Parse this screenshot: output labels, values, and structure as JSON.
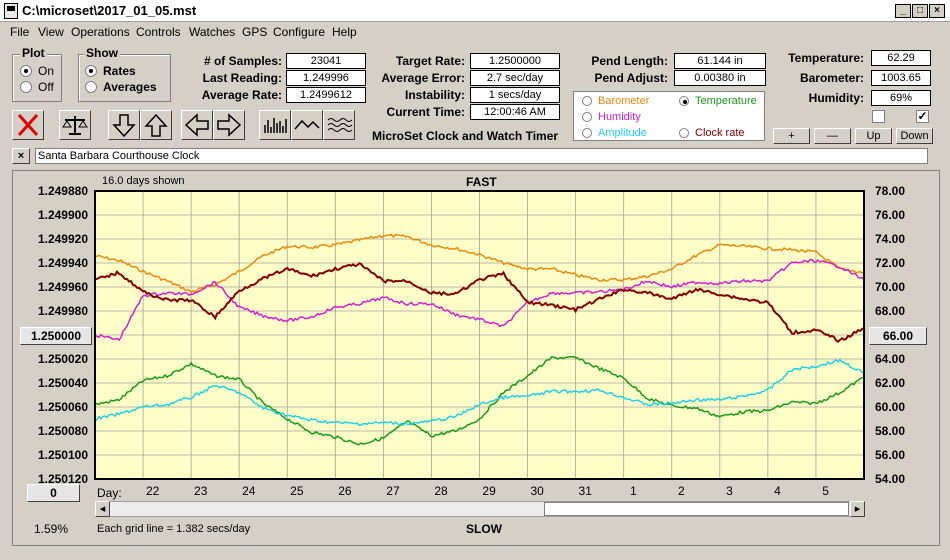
{
  "window": {
    "title": "C:\\microset\\2017_01_05.mst"
  },
  "menu": [
    "File",
    "View",
    "Operations",
    "Controls",
    "Watches",
    "GPS",
    "Configure",
    "Help"
  ],
  "plot": {
    "title": "Plot",
    "on": "On",
    "off": "Off"
  },
  "show": {
    "title": "Show",
    "rates": "Rates",
    "averages": "Averages"
  },
  "stats": {
    "samples_label": "# of Samples:",
    "samples": "23041",
    "last_label": "Last Reading:",
    "last": "1.249996",
    "avg_label": "Average Rate:",
    "avg": "1.2499612"
  },
  "targets": {
    "target_label": "Target Rate:",
    "target": "1.2500000",
    "error_label": "Average Error:",
    "error": "2.7 sec/day",
    "instability_label": "Instability:",
    "instability": "1 secs/day",
    "time_label": "Current Time:",
    "time": "12:00:46 AM"
  },
  "pendulum": {
    "length_label": "Pend Length:",
    "length": "61.144 in",
    "adjust_label": "Pend Adjust:",
    "adjust": "0.00380 in"
  },
  "environment": {
    "temp_label": "Temperature:",
    "temp": "62.29",
    "baro_label": "Barometer:",
    "baro": "1003.65",
    "hum_label": "Humidity:",
    "hum": "69%"
  },
  "legend": {
    "barometer": "Barometer",
    "temperature": "Temperature",
    "humidity": "Humidity",
    "amplitude": "Amplitude",
    "clock_rate": "Clock rate",
    "colors": {
      "barometer": "#e88a10",
      "temperature": "#1a9a1a",
      "humidity": "#d020d0",
      "amplitude": "#20d0e8",
      "clock_rate": "#800000"
    }
  },
  "app_caption": "MicroSet Clock and Watch Timer",
  "adjust_buttons": [
    "+",
    "—",
    "Up",
    "Down"
  ],
  "clock_name": "Santa Barbara Courthouse Clock",
  "chart_header": {
    "days_shown": "16.0 days shown",
    "top": "FAST",
    "bottom": "SLOW",
    "grid_note": "Each grid line = 1.382 secs/day",
    "pct": "1.59%",
    "day_label": "Day:"
  },
  "left_button": "1.250000",
  "right_button": "66.00",
  "zero_button": "0",
  "chart_data": {
    "type": "line",
    "x_ticks": [
      "22",
      "23",
      "24",
      "25",
      "26",
      "27",
      "28",
      "29",
      "30",
      "31",
      "1",
      "2",
      "3",
      "4",
      "5"
    ],
    "y_left_ticks": [
      "1.249880",
      "1.249900",
      "1.249920",
      "1.249940",
      "1.249960",
      "1.249980",
      "1.250000",
      "1.250020",
      "1.250040",
      "1.250060",
      "1.250080",
      "1.250100",
      "1.250120"
    ],
    "y_right_ticks": [
      "78.00",
      "76.00",
      "74.00",
      "72.00",
      "70.00",
      "68.00",
      "66.00",
      "64.00",
      "62.00",
      "60.00",
      "58.00",
      "56.00",
      "54.00"
    ],
    "x_range": [
      0,
      16
    ],
    "y_left_range": [
      1.24988,
      1.25012
    ],
    "y_right_range": [
      54,
      78
    ],
    "grid": true,
    "series": [
      {
        "name": "Barometer",
        "color": "#e88a10",
        "axis": "right",
        "x": [
          0,
          0.5,
          1.0,
          1.5,
          2.0,
          2.5,
          3.0,
          3.5,
          4.0,
          4.5,
          5.0,
          5.5,
          6.0,
          6.5,
          7.0,
          7.5,
          8.0,
          8.5,
          9.0,
          9.5,
          10.0,
          10.5,
          11.0,
          11.5,
          12.0,
          12.5,
          13.0,
          13.5,
          14.0,
          14.5,
          15.0,
          15.5,
          16.0
        ],
        "y": [
          72.6,
          72.2,
          71.3,
          70.5,
          69.6,
          70.2,
          71.3,
          72.6,
          73.4,
          73.3,
          73.5,
          73.9,
          74.3,
          74.2,
          73.5,
          73.2,
          72.7,
          72.0,
          71.5,
          71.5,
          71.0,
          70.6,
          70.6,
          70.9,
          71.5,
          72.6,
          73.5,
          73.4,
          73.2,
          73.1,
          72.9,
          71.5,
          71.2
        ]
      },
      {
        "name": "Temperature",
        "color": "#1a9a1a",
        "axis": "right",
        "x": [
          0,
          0.5,
          1.0,
          1.5,
          2.0,
          2.5,
          3.0,
          3.5,
          4.0,
          4.5,
          5.0,
          5.5,
          6.0,
          6.5,
          7.0,
          7.5,
          8.0,
          8.5,
          9.0,
          9.5,
          10.0,
          10.5,
          11.0,
          11.5,
          12.0,
          12.5,
          13.0,
          13.5,
          14.0,
          14.5,
          15.0,
          15.5,
          16.0
        ],
        "y": [
          60.2,
          60.6,
          62.2,
          62.6,
          63.6,
          62.6,
          62.3,
          60.3,
          59.0,
          57.9,
          57.5,
          56.9,
          57.4,
          58.8,
          57.6,
          58.0,
          59.0,
          61.2,
          62.6,
          64.1,
          64.1,
          63.2,
          62.4,
          60.7,
          60.1,
          59.9,
          59.2,
          59.6,
          59.7,
          60.4,
          60.3,
          61.2,
          62.5
        ]
      },
      {
        "name": "Humidity",
        "color": "#d020d0",
        "axis": "right",
        "x": [
          0,
          0.5,
          1.0,
          1.5,
          2.0,
          2.5,
          3.0,
          3.5,
          4.0,
          4.5,
          5.0,
          5.5,
          6.0,
          6.5,
          7.0,
          7.5,
          8.0,
          8.5,
          9.0,
          9.5,
          10.0,
          10.5,
          11.0,
          11.5,
          12.0,
          12.5,
          13.0,
          13.5,
          14.0,
          14.5,
          15.0,
          15.5,
          16.0
        ],
        "y": [
          66.0,
          65.6,
          69.3,
          69.5,
          69.4,
          70.4,
          68.3,
          67.6,
          67.2,
          67.5,
          68.3,
          68.6,
          69.1,
          68.6,
          68.6,
          67.7,
          67.3,
          66.7,
          68.7,
          69.5,
          69.5,
          69.6,
          69.8,
          70.5,
          70.0,
          70.4,
          70.3,
          70.5,
          70.5,
          72.0,
          72.2,
          71.7,
          70.6
        ]
      },
      {
        "name": "Amplitude",
        "color": "#20d0e8",
        "axis": "right",
        "x": [
          0,
          0.5,
          1.0,
          1.5,
          2.0,
          2.5,
          3.0,
          3.5,
          4.0,
          4.5,
          5.0,
          5.5,
          6.0,
          6.5,
          7.0,
          7.5,
          8.0,
          8.5,
          9.0,
          9.5,
          10.0,
          10.5,
          11.0,
          11.5,
          12.0,
          12.5,
          13.0,
          13.5,
          14.0,
          14.5,
          15.0,
          15.5,
          16.0
        ],
        "y": [
          59.0,
          59.4,
          60.0,
          60.2,
          60.8,
          61.8,
          61.2,
          59.9,
          59.3,
          58.9,
          58.7,
          58.6,
          58.7,
          58.6,
          58.8,
          59.2,
          60.2,
          60.8,
          60.9,
          61.3,
          61.3,
          61.4,
          60.8,
          60.2,
          60.3,
          60.6,
          60.6,
          60.9,
          61.4,
          63.1,
          63.4,
          63.9,
          62.8
        ]
      },
      {
        "name": "Clock rate",
        "color": "#800000",
        "axis": "left",
        "x": [
          0,
          0.5,
          1.0,
          1.5,
          2.0,
          2.5,
          3.0,
          3.5,
          4.0,
          4.5,
          5.0,
          5.5,
          6.0,
          6.5,
          7.0,
          7.5,
          8.0,
          8.5,
          9.0,
          9.5,
          10.0,
          10.5,
          11.0,
          11.5,
          12.0,
          12.5,
          13.0,
          13.5,
          14.0,
          14.5,
          15.0,
          15.5,
          16.0
        ],
        "y": [
          1.249954,
          1.249948,
          1.249964,
          1.249971,
          1.249971,
          1.249985,
          1.249963,
          1.249953,
          1.249945,
          1.249951,
          1.249945,
          1.249941,
          1.249955,
          1.249955,
          1.249965,
          1.249966,
          1.249954,
          1.249949,
          1.249973,
          1.249975,
          1.249979,
          1.24997,
          1.249962,
          1.249965,
          1.24997,
          1.249962,
          1.249966,
          1.24997,
          1.249973,
          1.249998,
          1.249996,
          1.250005,
          1.249994
        ]
      }
    ]
  }
}
